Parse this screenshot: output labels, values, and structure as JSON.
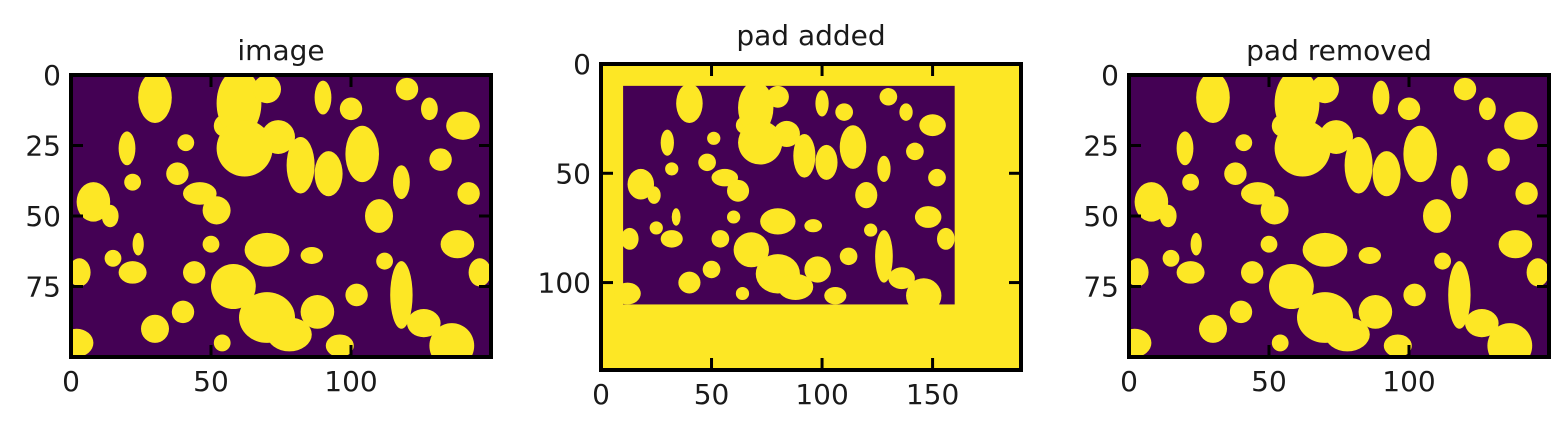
{
  "colors": {
    "background": "#440154",
    "foreground": "#fde725",
    "axis": "#000000"
  },
  "chart_data": [
    {
      "type": "heatmap",
      "title": "image",
      "xlim": [
        0,
        150
      ],
      "ylim": [
        100,
        0
      ],
      "xticks": [
        "0",
        "50",
        "100"
      ],
      "yticks": [
        "0",
        "25",
        "50",
        "75"
      ],
      "grid": false
    },
    {
      "type": "heatmap",
      "title": "pad added",
      "xlim": [
        0,
        190
      ],
      "ylim": [
        140,
        0
      ],
      "xticks": [
        "0",
        "50",
        "100",
        "150"
      ],
      "yticks": [
        "0",
        "50",
        "100"
      ],
      "grid": false,
      "pad_extent": {
        "x_start": 10,
        "x_end": 160,
        "y_start": 10,
        "y_end": 110
      }
    },
    {
      "type": "heatmap",
      "title": "pad removed",
      "xlim": [
        0,
        150
      ],
      "ylim": [
        100,
        0
      ],
      "xticks": [
        "0",
        "50",
        "100"
      ],
      "yticks": [
        "0",
        "25",
        "50",
        "75"
      ],
      "grid": false
    }
  ]
}
